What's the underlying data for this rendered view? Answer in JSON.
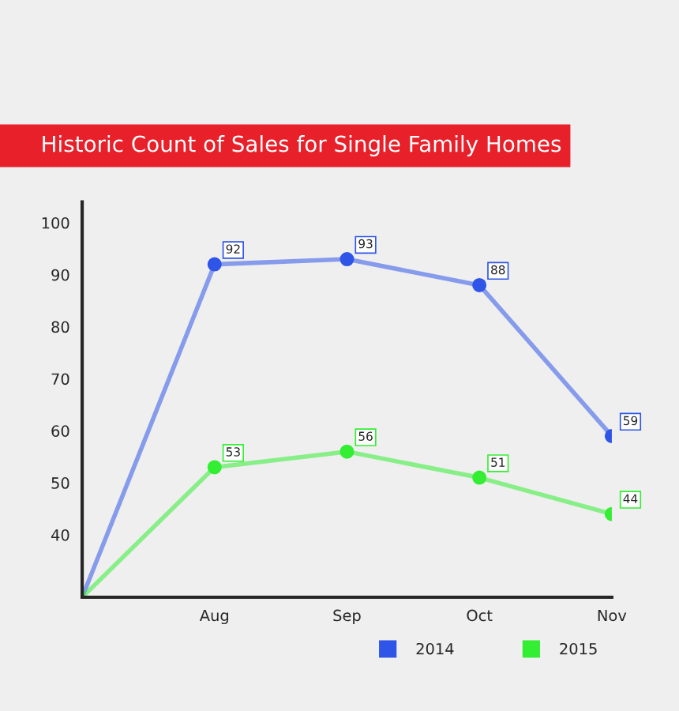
{
  "chart_data": {
    "type": "line",
    "title": "Historic Count of Sales for Single Family Homes",
    "categories": [
      null,
      "Aug",
      "Sep",
      "Oct",
      "Nov"
    ],
    "series": [
      {
        "name": "2014",
        "color": "#2f55e8",
        "values": [
          28,
          92,
          93,
          88,
          59
        ],
        "value_labels": [
          null,
          "92",
          "93",
          "88",
          "59"
        ]
      },
      {
        "name": "2015",
        "color": "#33ee33",
        "values": [
          28,
          53,
          56,
          51,
          44
        ],
        "value_labels": [
          null,
          "53",
          "56",
          "51",
          "44"
        ]
      }
    ],
    "ylim": [
      28,
      104
    ],
    "yticks": [
      40,
      50,
      60,
      70,
      80,
      90,
      100
    ],
    "marker": "circle",
    "line_style": "solid",
    "grid": false,
    "legend": "bottom right"
  }
}
